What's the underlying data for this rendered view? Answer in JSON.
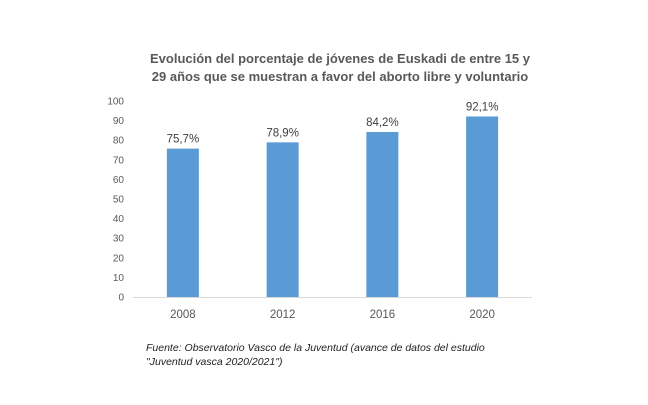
{
  "chart_data": {
    "type": "bar",
    "title_lines": [
      "Evolución del porcentaje de jóvenes de Euskadi de entre 15 y",
      "29 años que se muestran a favor del aborto libre y voluntario"
    ],
    "categories": [
      "2008",
      "2012",
      "2016",
      "2020"
    ],
    "values": [
      75.7,
      78.9,
      84.2,
      92.1
    ],
    "data_labels": [
      "75,7%",
      "78,9%",
      "84,2%",
      "92,1%"
    ],
    "ylim": [
      0,
      100
    ],
    "yticks": [
      "0",
      "10",
      "20",
      "30",
      "40",
      "50",
      "60",
      "70",
      "80",
      "90",
      "100"
    ],
    "grid": false,
    "legend": "none",
    "bar_color": "#5B9BD5",
    "source_lines": [
      "Fuente: Observatorio Vasco de la Juventud (avance de datos del estudio",
      "\"Juventud vasca 2020/2021\")"
    ]
  }
}
